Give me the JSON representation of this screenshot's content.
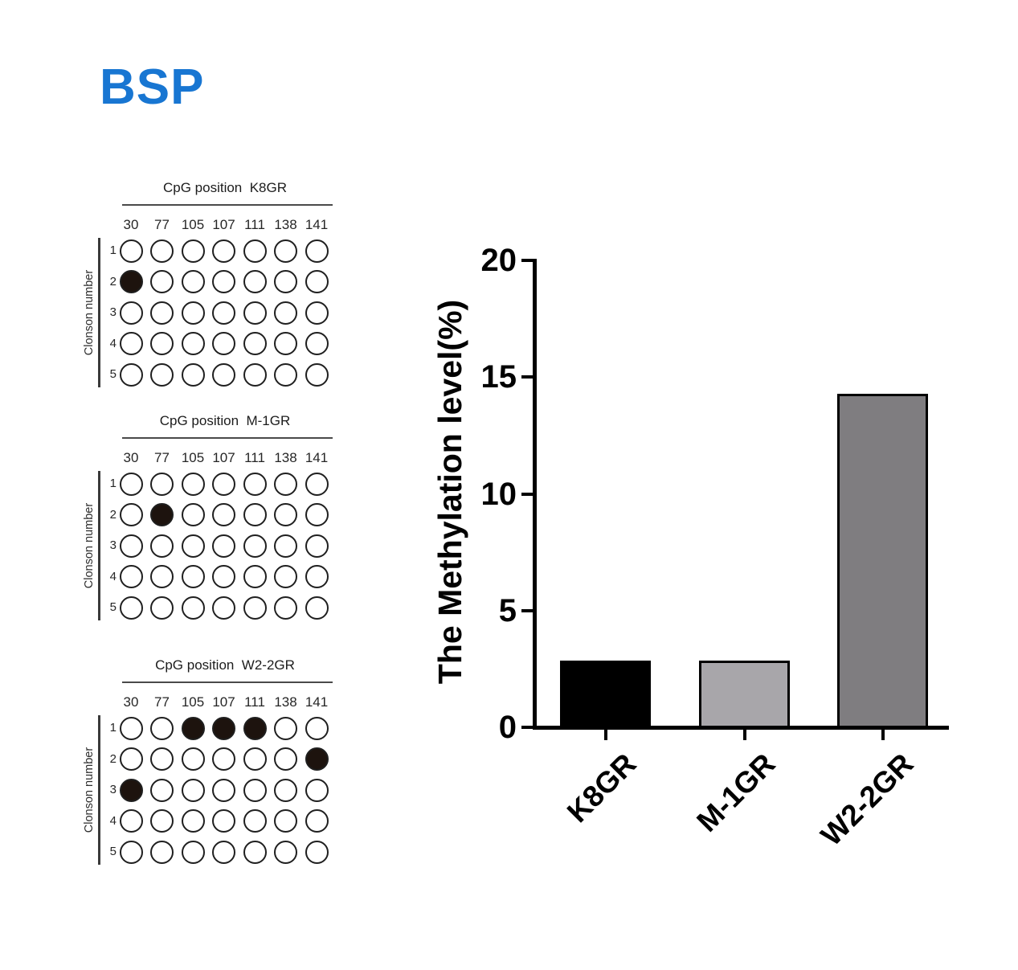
{
  "figure_title": "BSP",
  "figure_title_color": "#1876D2",
  "panels": {
    "axis_label": "Clonson number",
    "title_prefix": "CpG position",
    "cpg_positions": [
      "30",
      "77",
      "105",
      "107",
      "111",
      "138",
      "141"
    ],
    "row_labels": [
      "1",
      "2",
      "3",
      "4",
      "5"
    ],
    "items": [
      {
        "name": "K8GR",
        "filled_cells_row_col": [
          [
            1,
            0
          ]
        ]
      },
      {
        "name": "M-1GR",
        "filled_cells_row_col": [
          [
            1,
            1
          ]
        ]
      },
      {
        "name": "W2-2GR",
        "filled_cells_row_col": [
          [
            0,
            2
          ],
          [
            0,
            3
          ],
          [
            0,
            4
          ],
          [
            1,
            6
          ],
          [
            2,
            0
          ]
        ]
      }
    ],
    "circle_empty_color": "#ffffff",
    "circle_filled_color": "#1d130e",
    "circle_stroke_color": "#1f1f1f"
  },
  "chart_data": {
    "type": "bar",
    "categories": [
      "K8GR",
      "M-1GR",
      "W2-2GR"
    ],
    "values": [
      2.86,
      2.86,
      14.29
    ],
    "title": "",
    "xlabel": "",
    "ylabel": "The Methylation level(%)",
    "ylim": [
      0,
      20
    ],
    "yticks": [
      0,
      5,
      10,
      15,
      20
    ],
    "bar_fill_colors": [
      "#000000",
      "#A8A6AA",
      "#7F7D80"
    ],
    "bar_border_color": "#000000",
    "grid": false,
    "legend": false
  }
}
